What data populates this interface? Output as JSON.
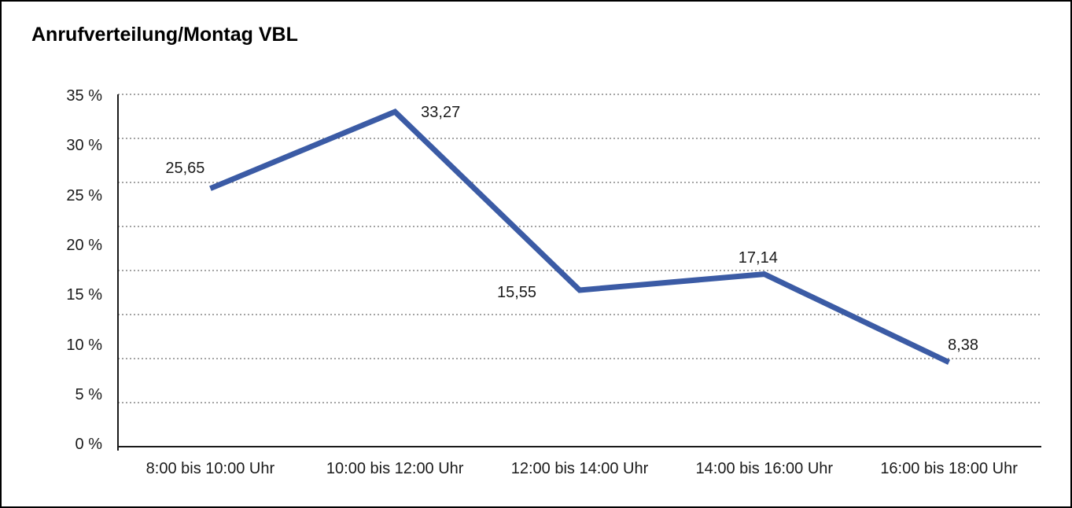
{
  "window": {
    "background": "#ffffff",
    "border_color": "#000000",
    "text_color": "#1a1a1a"
  },
  "chart_data": {
    "type": "line",
    "title": "Anrufverteilung/Montag VBL",
    "categories": [
      "8:00 bis 10:00 Uhr",
      "10:00 bis 12:00 Uhr",
      "12:00 bis 14:00 Uhr",
      "14:00 bis 16:00 Uhr",
      "16:00 bis 18:00 Uhr"
    ],
    "values": [
      25.65,
      33.27,
      15.55,
      17.14,
      8.38
    ],
    "value_labels": [
      "25,65",
      "33,27",
      "15,55",
      "17,14",
      "8,38"
    ],
    "label_positions": [
      "above-left",
      "right",
      "left",
      "above",
      "above-right"
    ],
    "y_ticks": [
      "35 %",
      "30 %",
      "25 %",
      "20 %",
      "15 %",
      "10 %",
      "5 %",
      "0 %"
    ],
    "ylim": [
      0,
      35
    ],
    "y_tick_step": 5,
    "xlabel": "",
    "ylabel": "",
    "legend": "none",
    "grid": "dotted-horizontal",
    "line_color": "#3B5BA5",
    "grid_color": "#6e6e6e",
    "axis_color": "#1a1a1a"
  }
}
